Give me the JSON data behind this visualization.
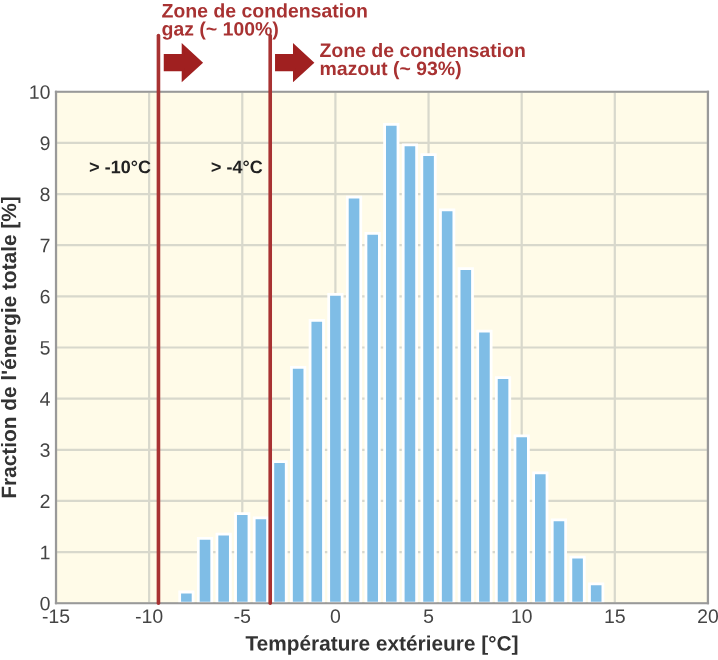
{
  "chart_data": {
    "type": "bar",
    "xlabel": "Température extérieure [°C]",
    "ylabel": "Fraction de l'énergie totale [%]",
    "x": [
      -8,
      -7,
      -6,
      -5,
      -4,
      -3,
      -2,
      -1,
      0,
      1,
      2,
      3,
      4,
      5,
      6,
      7,
      8,
      9,
      10,
      11,
      12,
      13,
      14
    ],
    "values": [
      0.22,
      1.27,
      1.35,
      1.75,
      1.67,
      2.77,
      4.61,
      5.53,
      6.04,
      7.94,
      7.23,
      9.36,
      8.96,
      8.77,
      7.69,
      6.54,
      5.32,
      4.41,
      3.27,
      2.55,
      1.63,
      0.9,
      0.38
    ],
    "color": "#7fbde6",
    "xlim": [
      -15,
      20
    ],
    "xticks": [
      -15,
      -10,
      -5,
      0,
      5,
      10,
      15,
      20
    ],
    "ylim": [
      0,
      10
    ],
    "yticks": [
      0,
      1,
      2,
      3,
      4,
      5,
      6,
      7,
      8,
      9,
      10
    ],
    "grid": true,
    "ref_lines": [
      {
        "axis": "x",
        "value": -9.5,
        "label": "> -10°C",
        "color": "#a83232"
      },
      {
        "axis": "x",
        "value": -3.5,
        "label": "> -4°C",
        "color": "#a83232"
      }
    ],
    "annotations": [
      "Zone de condensation\ngaz (~ 100%)",
      "Zone de condensation\nmazout (~ 93%)"
    ]
  }
}
